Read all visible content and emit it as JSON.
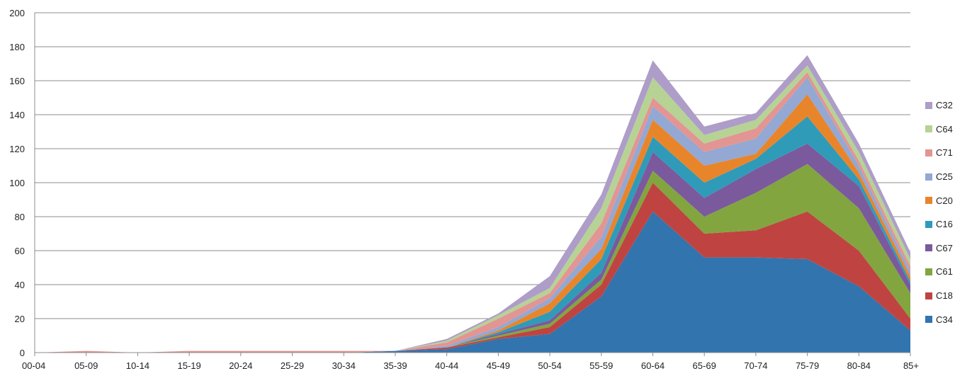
{
  "chart_data": {
    "type": "area",
    "stacked": true,
    "title": "",
    "xlabel": "",
    "ylabel": "",
    "categories": [
      "00-04",
      "05-09",
      "10-14",
      "15-19",
      "20-24",
      "25-29",
      "30-34",
      "35-39",
      "40-44",
      "45-49",
      "50-54",
      "55-59",
      "60-64",
      "65-69",
      "70-74",
      "75-79",
      "80-84",
      "85+"
    ],
    "ylim": [
      0,
      200
    ],
    "yticks": [
      0,
      20,
      40,
      60,
      80,
      100,
      120,
      140,
      160,
      180,
      200
    ],
    "grid": true,
    "legend_position": "right",
    "series": [
      {
        "name": "C34",
        "color": "#3274ae",
        "values": [
          0,
          0,
          0,
          0,
          0,
          0,
          0,
          1,
          2,
          8,
          11,
          33,
          83,
          56,
          56,
          55,
          39,
          13
        ]
      },
      {
        "name": "C18",
        "color": "#bf4441",
        "values": [
          0,
          0,
          0,
          0,
          0,
          0,
          0,
          0,
          1,
          1,
          4,
          7,
          17,
          14,
          16,
          28,
          21,
          7
        ]
      },
      {
        "name": "C61",
        "color": "#82a540",
        "values": [
          0,
          0,
          0,
          0,
          0,
          0,
          0,
          0,
          0,
          1,
          2,
          3,
          7,
          10,
          22,
          28,
          25,
          15
        ]
      },
      {
        "name": "C67",
        "color": "#7a5a9c",
        "values": [
          0,
          0,
          0,
          0,
          0,
          0,
          0,
          0,
          0,
          1,
          2,
          4,
          11,
          11,
          14,
          12,
          13,
          5
        ]
      },
      {
        "name": "C16",
        "color": "#2f9bb8",
        "values": [
          0,
          0,
          0,
          0,
          0,
          0,
          0,
          0,
          0,
          1,
          5,
          8,
          9,
          9,
          6,
          16,
          4,
          2
        ]
      },
      {
        "name": "C20",
        "color": "#e8852b",
        "values": [
          0,
          0,
          0,
          0,
          0,
          0,
          0,
          0,
          0,
          1,
          5,
          6,
          10,
          10,
          3,
          13,
          4,
          3
        ]
      },
      {
        "name": "C25",
        "color": "#93a8d2",
        "values": [
          0,
          0,
          0,
          0,
          0,
          0,
          0,
          0,
          1,
          2,
          3,
          7,
          8,
          8,
          9,
          10,
          4,
          3
        ]
      },
      {
        "name": "C71",
        "color": "#e29593",
        "values": [
          0,
          1,
          0,
          1,
          1,
          1,
          1,
          0,
          2,
          5,
          3,
          8,
          5,
          5,
          6,
          3,
          3,
          3
        ]
      },
      {
        "name": "C64",
        "color": "#b7d295",
        "values": [
          0,
          0,
          0,
          0,
          0,
          0,
          0,
          0,
          1,
          2,
          3,
          9,
          12,
          5,
          5,
          4,
          5,
          4
        ]
      },
      {
        "name": "C32",
        "color": "#ae9dc8",
        "values": [
          0,
          0,
          0,
          0,
          0,
          0,
          0,
          0,
          1,
          1,
          7,
          8,
          10,
          5,
          4,
          6,
          5,
          4
        ]
      }
    ]
  }
}
